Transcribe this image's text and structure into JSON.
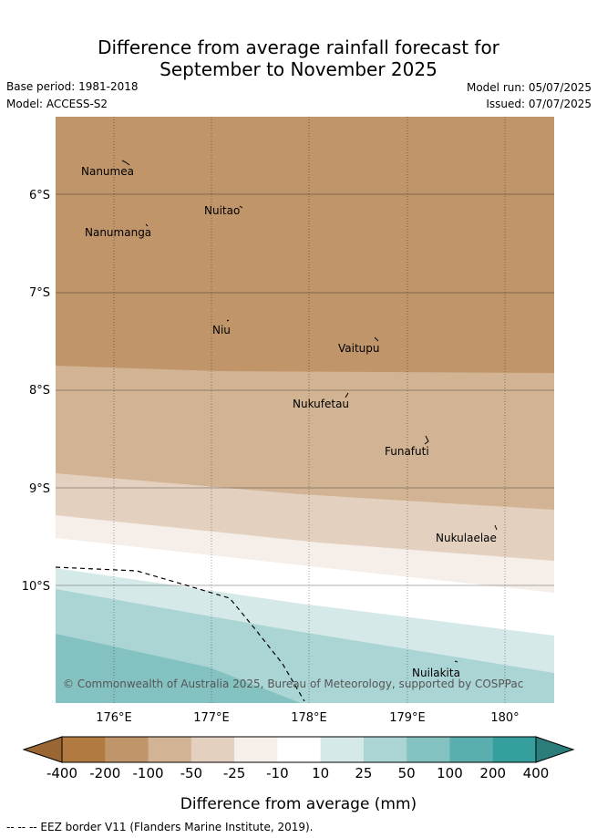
{
  "title": {
    "line1": "Difference from average rainfall forecast for",
    "line2": "September to November 2025"
  },
  "meta": {
    "base_period": "Base period: 1981-2018",
    "model": "Model: ACCESS-S2",
    "model_run": "Model run: 05/07/2025",
    "issued": "Issued: 07/07/2025"
  },
  "map": {
    "lat_labels": [
      "6°S",
      "7°S",
      "8°S",
      "9°S",
      "10°S"
    ],
    "lon_labels": [
      "176°E",
      "177°E",
      "178°E",
      "179°E",
      "180°"
    ],
    "places": [
      "Nanumea",
      "Nuitao",
      "Nanumanga",
      "Niu",
      "Vaitupu",
      "Nukufetau",
      "Funafuti",
      "Nukulaelae",
      "Nuilakita"
    ],
    "copyright": "© Commonwealth of Australia 2025, Bureau of Meteorology, supported by COSPPac"
  },
  "colorbar": {
    "label": "Difference from average (mm)",
    "ticks": [
      "-400",
      "-200",
      "-100",
      "-50",
      "-25",
      "-10",
      "10",
      "25",
      "50",
      "100",
      "200",
      "400"
    ],
    "colors": [
      "#b07a40",
      "#c0956a",
      "#d2b393",
      "#e3d0bf",
      "#f5eee9",
      "#ffffff",
      "#d5e9e8",
      "#abd5d4",
      "#84c2c1",
      "#5aafae",
      "#349f9d"
    ],
    "under_color": "#9a6733",
    "over_color": "#2a7d7b"
  },
  "footer": "--  --  -- EEZ border V11 (Flanders Marine Institute, 2019)."
}
